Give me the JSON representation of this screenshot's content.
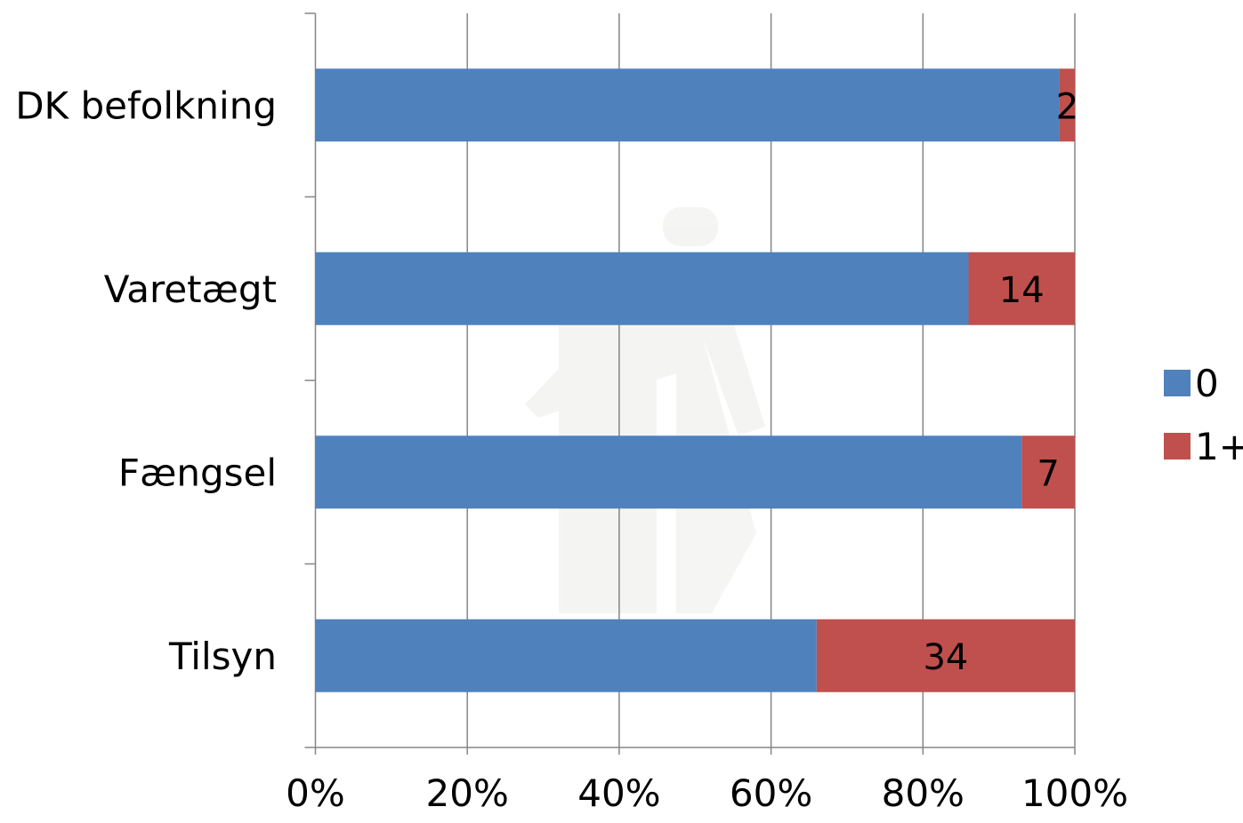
{
  "chart_data": {
    "type": "bar",
    "orientation": "horizontal",
    "stacked": true,
    "normalized": true,
    "categories": [
      "DK befolkning",
      "Varetægt",
      "Fængsel",
      "Tilsyn"
    ],
    "series": [
      {
        "name": "0",
        "values": [
          98,
          86,
          93,
          66
        ],
        "color": "#4F81BD"
      },
      {
        "name": "1+",
        "values": [
          2,
          14,
          7,
          34
        ],
        "color": "#C0504D"
      }
    ],
    "data_labels": [
      "2",
      "14",
      "7",
      "34"
    ],
    "x_ticks": [
      "0%",
      "20%",
      "40%",
      "60%",
      "80%",
      "100%"
    ],
    "xlim": [
      0,
      100
    ],
    "grid": "vertical",
    "legend_position": "right",
    "title": "",
    "xlabel": "",
    "ylabel": ""
  }
}
